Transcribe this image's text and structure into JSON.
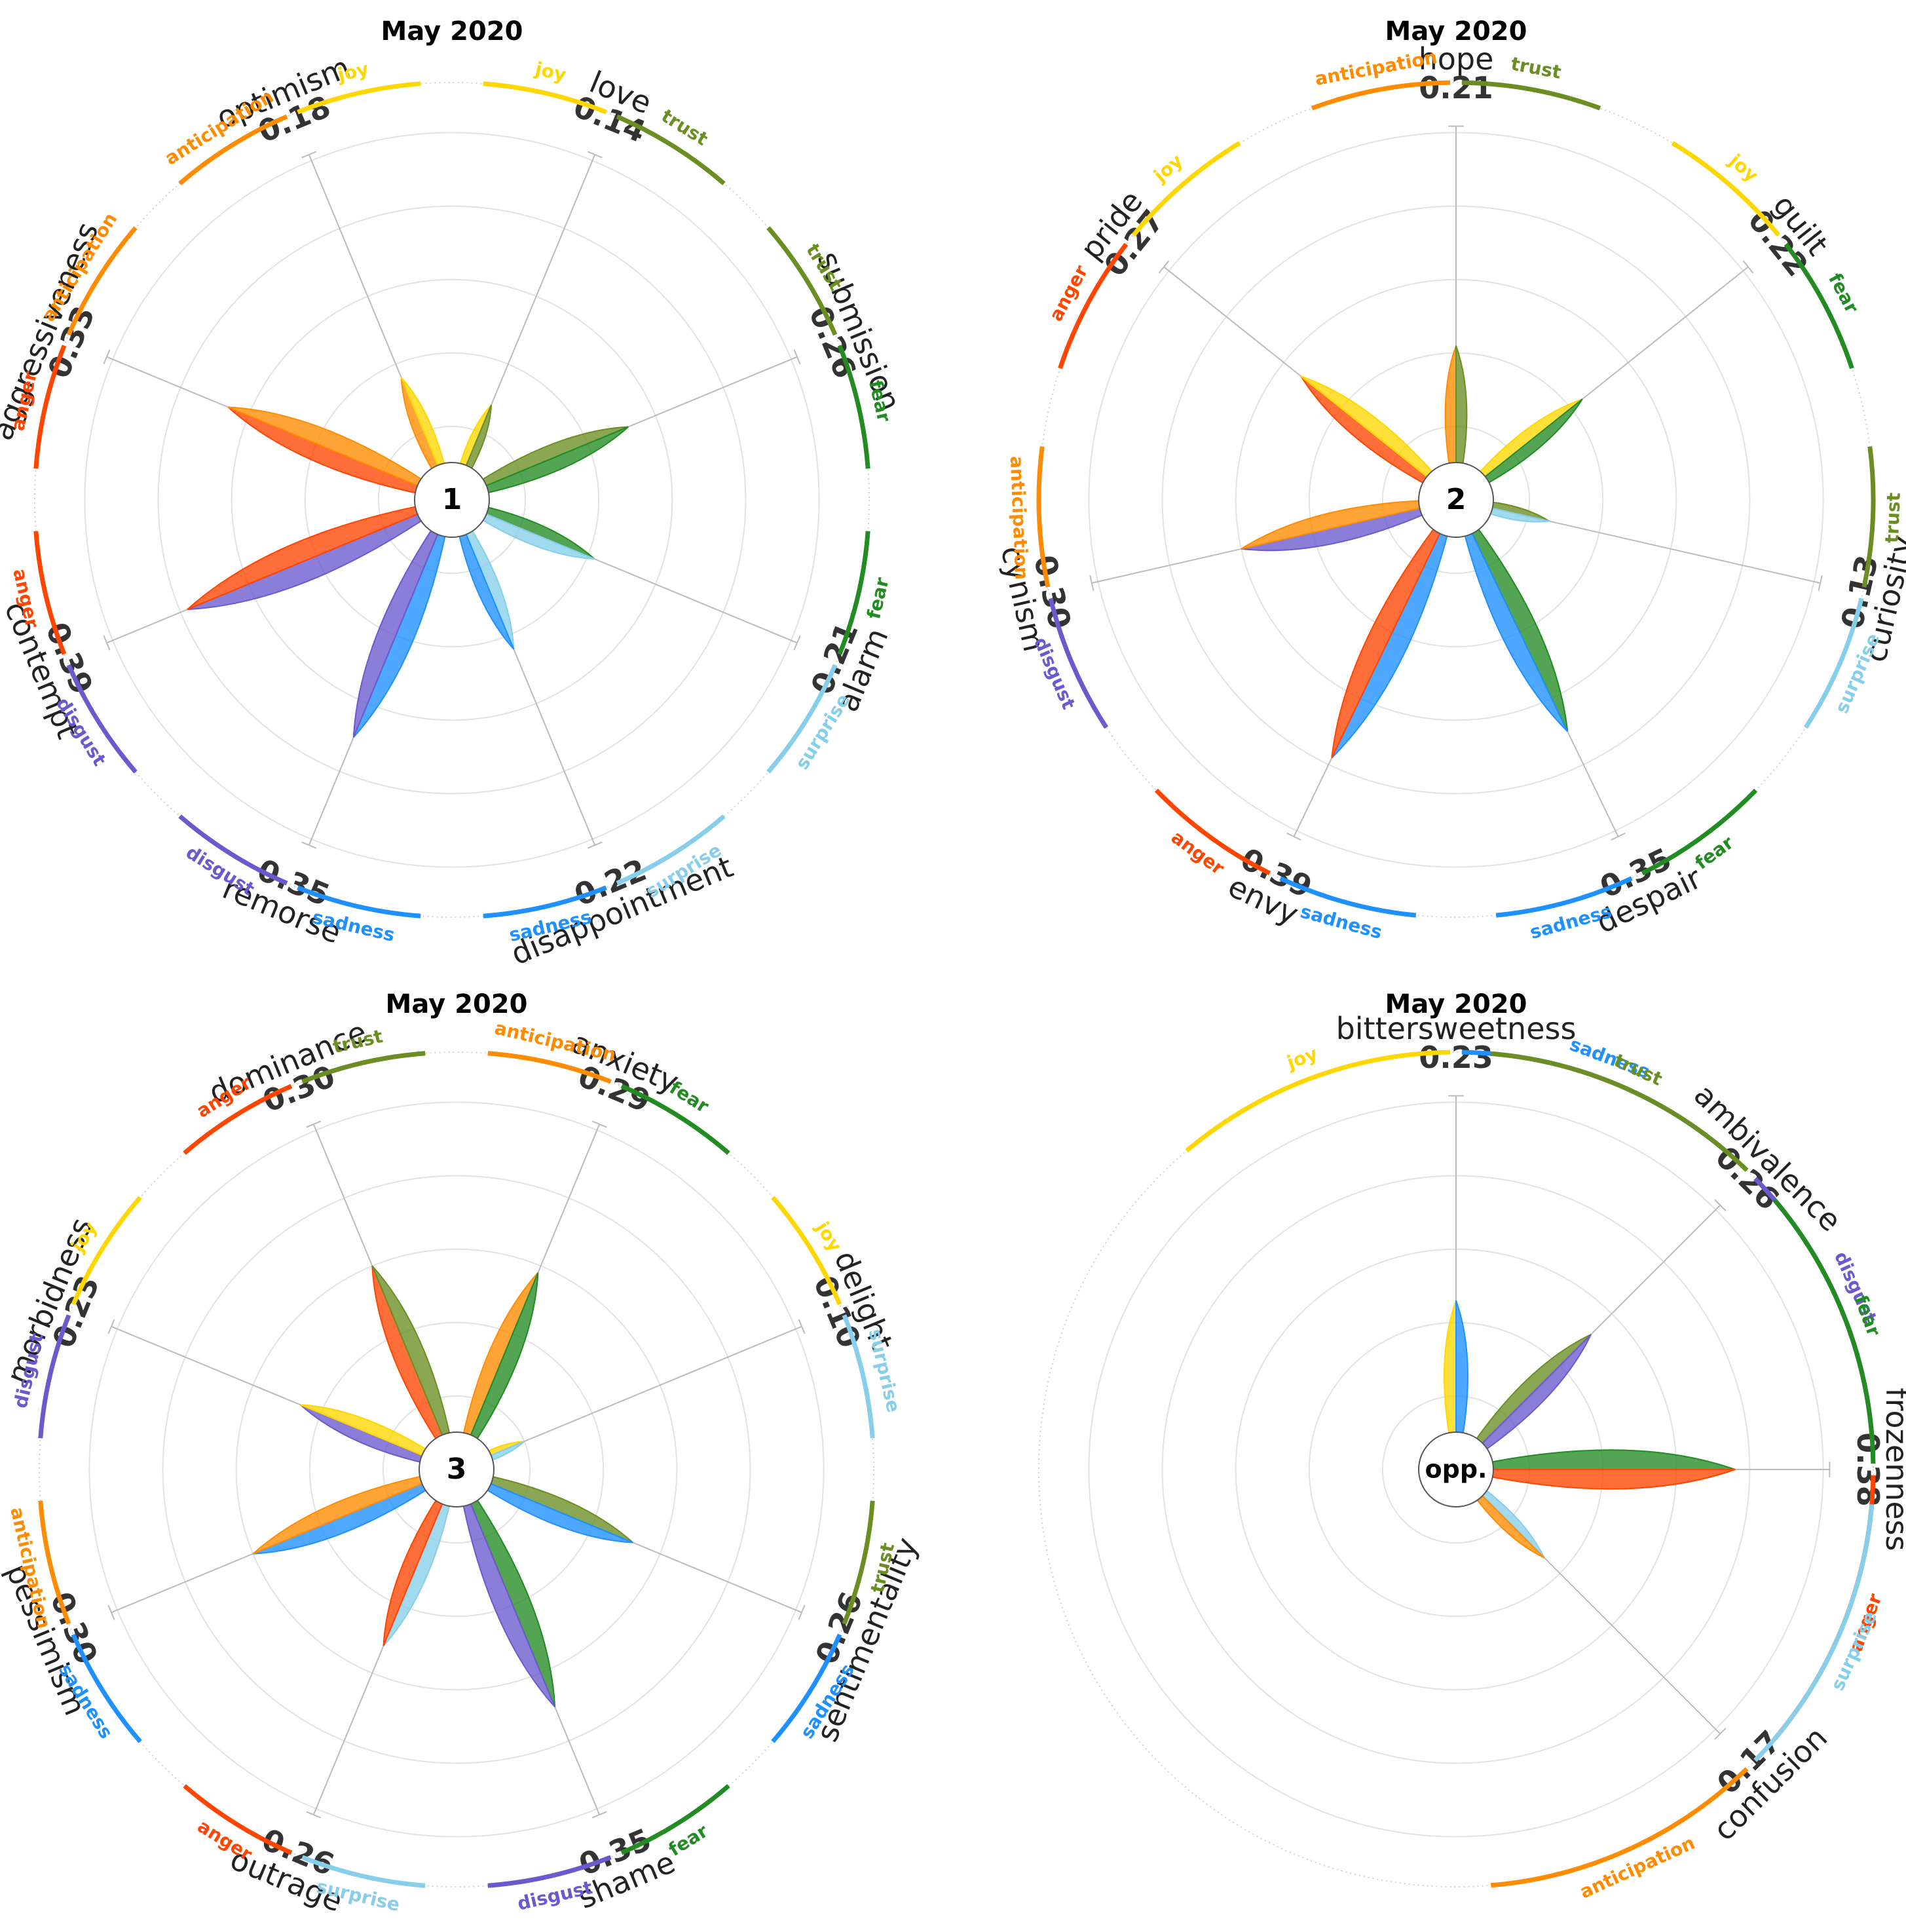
{
  "colors": {
    "joy": "#FFD700",
    "trust": "#6B8E23",
    "fear": "#228B22",
    "surprise": "#87CEEB",
    "sadness": "#1E90FF",
    "disgust": "#6A5ACD",
    "anger": "#FF4500",
    "anticipation": "#FF8C00"
  },
  "chart_data": [
    {
      "type": "radial-flower",
      "title": "May 2020",
      "center_label": "1",
      "rmax": 0.5,
      "dyads": [
        {
          "name": "optimism",
          "value_label": "0.18",
          "value": 0.18,
          "primaries": [
            "anticipation",
            "joy"
          ]
        },
        {
          "name": "love",
          "value_label": "0.14",
          "value": 0.14,
          "primaries": [
            "joy",
            "trust"
          ]
        },
        {
          "name": "submission",
          "value_label": "0.26",
          "value": 0.26,
          "primaries": [
            "trust",
            "fear"
          ]
        },
        {
          "name": "alarm",
          "value_label": "0.21",
          "value": 0.21,
          "primaries": [
            "fear",
            "surprise"
          ]
        },
        {
          "name": "disappointment",
          "value_label": "0.22",
          "value": 0.22,
          "primaries": [
            "surprise",
            "sadness"
          ]
        },
        {
          "name": "remorse",
          "value_label": "0.35",
          "value": 0.35,
          "primaries": [
            "sadness",
            "disgust"
          ]
        },
        {
          "name": "contempt",
          "value_label": "0.39",
          "value": 0.39,
          "primaries": [
            "disgust",
            "anger"
          ]
        },
        {
          "name": "aggressiveness",
          "value_label": "0.33",
          "value": 0.33,
          "primaries": [
            "anger",
            "anticipation"
          ]
        }
      ]
    },
    {
      "type": "radial-flower",
      "title": "May 2020",
      "center_label": "2",
      "rmax": 0.5,
      "dyads": [
        {
          "name": "hope",
          "value_label": "0.21",
          "value": 0.21,
          "primaries": [
            "anticipation",
            "trust"
          ]
        },
        {
          "name": "guilt",
          "value_label": "0.22",
          "value": 0.22,
          "primaries": [
            "joy",
            "fear"
          ]
        },
        {
          "name": "curiosity",
          "value_label": "0.13",
          "value": 0.13,
          "primaries": [
            "trust",
            "surprise"
          ]
        },
        {
          "name": "despair",
          "value_label": "0.35",
          "value": 0.35,
          "primaries": [
            "fear",
            "sadness"
          ]
        },
        {
          "name": "envy",
          "value_label": "0.39",
          "value": 0.39,
          "primaries": [
            "sadness",
            "anger"
          ]
        },
        {
          "name": "cynism",
          "value_label": "0.30",
          "value": 0.3,
          "primaries": [
            "disgust",
            "anticipation"
          ]
        },
        {
          "name": "pride",
          "value_label": "0.27",
          "value": 0.27,
          "primaries": [
            "anger",
            "joy"
          ]
        }
      ]
    },
    {
      "type": "radial-flower",
      "title": "May 2020",
      "center_label": "3",
      "rmax": 0.5,
      "dyads": [
        {
          "name": "anxiety",
          "value_label": "0.29",
          "value": 0.29,
          "primaries": [
            "anticipation",
            "fear"
          ]
        },
        {
          "name": "delight",
          "value_label": "0.10",
          "value": 0.1,
          "primaries": [
            "joy",
            "surprise"
          ]
        },
        {
          "name": "sentimentality",
          "value_label": "0.26",
          "value": 0.26,
          "primaries": [
            "trust",
            "sadness"
          ]
        },
        {
          "name": "shame",
          "value_label": "0.35",
          "value": 0.35,
          "primaries": [
            "fear",
            "disgust"
          ]
        },
        {
          "name": "outrage",
          "value_label": "0.26",
          "value": 0.26,
          "primaries": [
            "surprise",
            "anger"
          ]
        },
        {
          "name": "pessimism",
          "value_label": "0.30",
          "value": 0.3,
          "primaries": [
            "sadness",
            "anticipation"
          ]
        },
        {
          "name": "morbidness",
          "value_label": "0.23",
          "value": 0.23,
          "primaries": [
            "disgust",
            "joy"
          ]
        },
        {
          "name": "dominance",
          "value_label": "0.30",
          "value": 0.3,
          "primaries": [
            "anger",
            "trust"
          ]
        }
      ]
    },
    {
      "type": "radial-flower",
      "title": "May 2020",
      "center_label": "opp.",
      "rmax": 0.5,
      "dyads": [
        {
          "name": "bittersweetness",
          "value_label": "0.23",
          "value": 0.23,
          "primaries": [
            "joy",
            "sadness"
          ]
        },
        {
          "name": "ambivalence",
          "value_label": "0.26",
          "value": 0.26,
          "primaries": [
            "trust",
            "disgust"
          ]
        },
        {
          "name": "frozenness",
          "value_label": "0.38",
          "value": 0.38,
          "primaries": [
            "fear",
            "anger"
          ]
        },
        {
          "name": "confusion",
          "value_label": "0.17",
          "value": 0.17,
          "primaries": [
            "surprise",
            "anticipation"
          ]
        }
      ]
    }
  ]
}
